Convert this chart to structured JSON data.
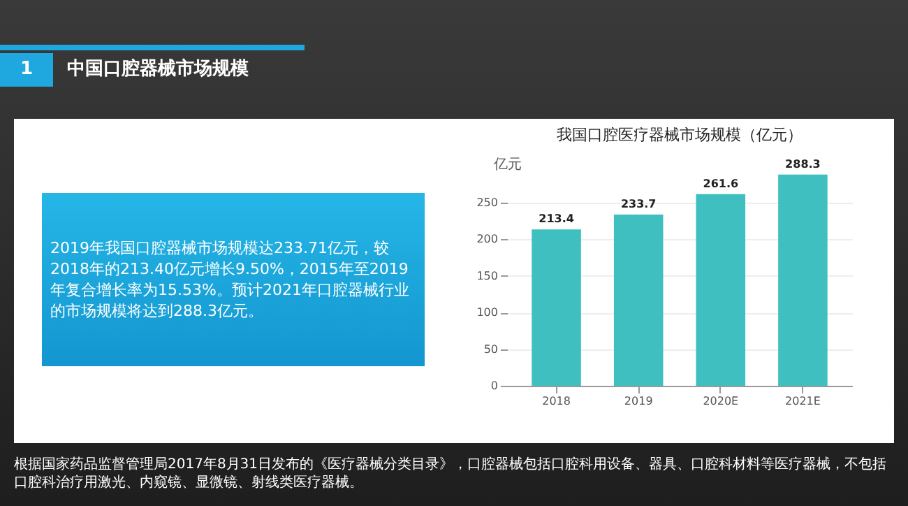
{
  "chart_data": {
    "type": "bar",
    "title": "我国口腔医疗器械市场规模（亿元）",
    "ylabel": "亿元",
    "categories": [
      "2018",
      "2019",
      "2020E",
      "2021E"
    ],
    "values": [
      213.4,
      233.7,
      261.6,
      288.3
    ],
    "color": "#3fbfbf",
    "ylim": [
      0,
      290
    ],
    "yticks": [
      0,
      50,
      100,
      150,
      200,
      250
    ],
    "grid": "y",
    "data_labels": true,
    "annotations": [
      "1",
      "中国口腔器械市场规模",
      "2019年我国口腔器械市场规模达233.71亿元，较2018年的213.40亿元增长9.50%，2015年至2019年复合增长率为15.53%。预计2021年口腔器械行业的市场规模将达到288.3亿元。",
      "根据国家药品监督管理局2017年8月31日发布的《医疗器械分类目录》，口腔器械包括口腔科用设备、器具、口腔科材料等医疗器械，不包括口腔科治疗用激光、内窥镜、显微镜、射线类医疗器械。"
    ]
  }
}
